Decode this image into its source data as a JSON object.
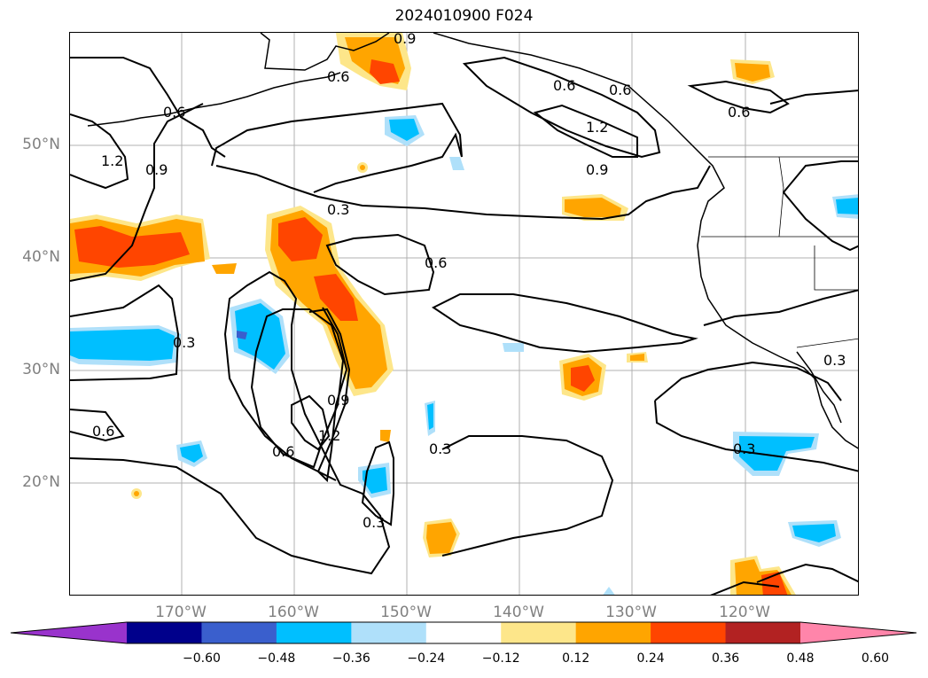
{
  "title": "2024010900 F024",
  "map": {
    "lat_labels": [
      {
        "text": "50°N",
        "lat": 50
      },
      {
        "text": "40°N",
        "lat": 40
      },
      {
        "text": "30°N",
        "lat": 30
      },
      {
        "text": "20°N",
        "lat": 20
      }
    ],
    "lon_labels": [
      {
        "text": "170°W",
        "lon": -170
      },
      {
        "text": "160°W",
        "lon": -160
      },
      {
        "text": "150°W",
        "lon": -150
      },
      {
        "text": "140°W",
        "lon": -140
      },
      {
        "text": "130°W",
        "lon": -130
      },
      {
        "text": "120°W",
        "lon": -120
      }
    ],
    "contour_labels": [
      "0.9",
      "0.6",
      "0.6",
      "1.2",
      "0.9",
      "0.6",
      "1.2",
      "0.9",
      "0.3",
      "0.6",
      "0.3",
      "0.6",
      "0.9",
      "0.6",
      "0.3",
      "0.3",
      "0.3",
      "0.6",
      "0.3",
      "0.6",
      "1.2"
    ]
  },
  "colorbar": {
    "ticks": [
      "−0.60",
      "−0.48",
      "−0.36",
      "−0.24",
      "−0.12",
      "0.12",
      "0.24",
      "0.36",
      "0.48",
      "0.60"
    ],
    "colors": [
      "#9933cc",
      "#00008b",
      "#3a5fcd",
      "#00bfff",
      "#afe0fa",
      "#ffffff",
      "#fde68a",
      "#ffa500",
      "#ff4500",
      "#b22222",
      "#ff85aa"
    ]
  }
}
